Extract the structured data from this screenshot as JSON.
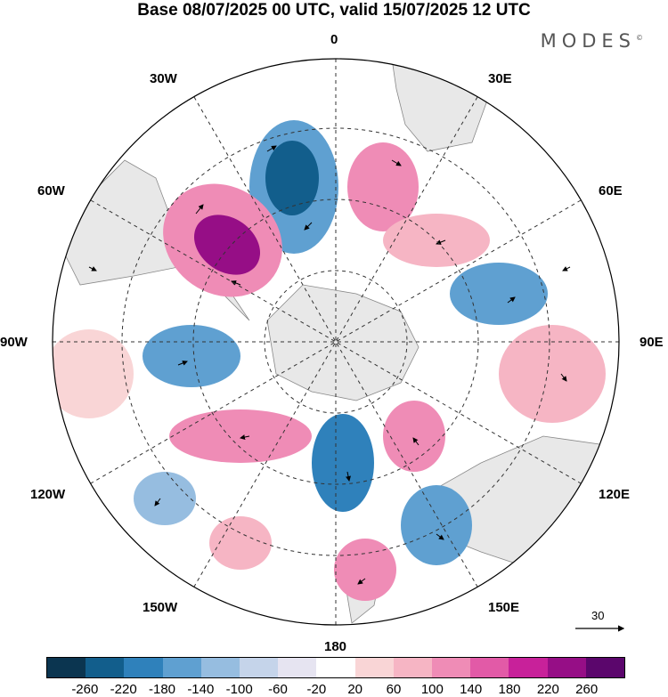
{
  "title": "Base 08/07/2025 00 UTC, valid 15/07/2025 12 UTC",
  "brand": "MODES",
  "brand_mark": "©",
  "longitude_labels": {
    "n0": "0",
    "ne30": "30E",
    "e60": "60E",
    "e90": "90E",
    "e120": "120E",
    "e150": "150E",
    "s180": "180",
    "w150": "150W",
    "w120": "120W",
    "w90": "90W",
    "w60": "60W",
    "w30": "30W"
  },
  "reference_vector": "30",
  "colorbar": {
    "colors": [
      "#0b3550",
      "#125e8c",
      "#2f81bb",
      "#5fa0d1",
      "#96bde0",
      "#c5d4ea",
      "#e6e4f1",
      "#ffffff",
      "#f9d5d6",
      "#f6b5c4",
      "#ef8cb6",
      "#e25aa7",
      "#c8219a",
      "#960e86",
      "#5b066c"
    ],
    "ticks": [
      "-260",
      "-220",
      "-180",
      "-140",
      "-100",
      "-60",
      "-20",
      "20",
      "60",
      "100",
      "140",
      "180",
      "220",
      "260"
    ]
  },
  "colors": {
    "land": "#e8e8e8",
    "grid": "#333333"
  }
}
